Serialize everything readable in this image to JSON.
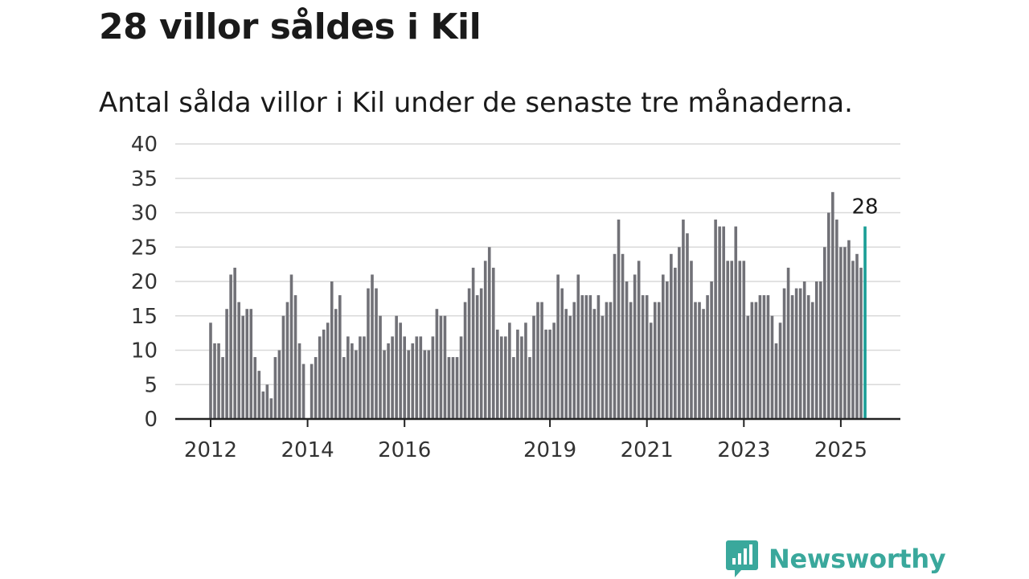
{
  "header": {
    "title": "28 villor såldes i Kil",
    "subtitle": "Antal sålda villor i Kil under de senaste tre månaderna."
  },
  "brand": {
    "name": "Newsworthy",
    "color": "#3aa89c",
    "icon": "newsworthy-chat-chart-icon"
  },
  "colors": {
    "bar": "#717177",
    "highlight": "#1a9e96",
    "grid": "#d9d9d9",
    "axis": "#222222"
  },
  "chart_data": {
    "type": "bar",
    "title": "28 villor såldes i Kil",
    "subtitle": "Antal sålda villor i Kil under de senaste tre månaderna.",
    "xlabel": "",
    "ylabel": "",
    "ylim": [
      0,
      40
    ],
    "yticks": [
      0,
      5,
      10,
      15,
      20,
      25,
      30,
      35,
      40
    ],
    "xticks": [
      "2012",
      "2014",
      "2016",
      "2019",
      "2021",
      "2023",
      "2025"
    ],
    "grid": true,
    "start_month": "2012-01",
    "highlight_last": true,
    "last_label": "28",
    "values": [
      14,
      11,
      11,
      9,
      16,
      21,
      22,
      17,
      15,
      16,
      16,
      9,
      7,
      4,
      5,
      3,
      9,
      10,
      15,
      17,
      21,
      18,
      11,
      8,
      0,
      8,
      9,
      12,
      13,
      14,
      20,
      16,
      18,
      9,
      12,
      11,
      10,
      12,
      12,
      19,
      21,
      19,
      15,
      10,
      11,
      12,
      15,
      14,
      12,
      10,
      11,
      12,
      12,
      10,
      10,
      12,
      16,
      15,
      15,
      9,
      9,
      9,
      12,
      17,
      19,
      22,
      18,
      19,
      23,
      25,
      22,
      13,
      12,
      12,
      14,
      9,
      13,
      12,
      14,
      9,
      15,
      17,
      17,
      13,
      13,
      14,
      21,
      19,
      16,
      15,
      17,
      21,
      18,
      18,
      18,
      16,
      18,
      15,
      17,
      17,
      24,
      29,
      24,
      20,
      17,
      21,
      23,
      18,
      18,
      14,
      17,
      17,
      21,
      20,
      24,
      22,
      25,
      29,
      27,
      23,
      17,
      17,
      16,
      18,
      20,
      29,
      28,
      28,
      23,
      23,
      28,
      23,
      23,
      15,
      17,
      17,
      18,
      18,
      18,
      15,
      11,
      14,
      19,
      22,
      18,
      19,
      19,
      20,
      18,
      17,
      20,
      20,
      25,
      30,
      33,
      29,
      25,
      25,
      26,
      23,
      24,
      22,
      28
    ]
  }
}
